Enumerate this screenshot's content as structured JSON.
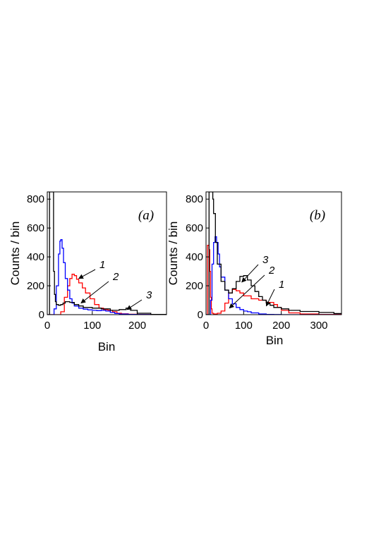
{
  "chart_data": [
    {
      "type": "line",
      "panel_label": "(a)",
      "xlabel": "Bin",
      "ylabel": "Counts / bin",
      "xlim": [
        0,
        265
      ],
      "ylim": [
        0,
        850
      ],
      "xticks": [
        0,
        100,
        200
      ],
      "yticks": [
        0,
        200,
        400,
        600,
        800
      ],
      "grid": false,
      "series": [
        {
          "id": "1",
          "color": "#ff0000",
          "x": [
            0,
            20,
            30,
            38,
            45,
            50,
            55,
            60,
            65,
            70,
            78,
            85,
            95,
            105,
            115,
            125,
            135,
            145,
            155,
            165,
            180,
            200,
            230,
            265
          ],
          "y": [
            0,
            0,
            20,
            120,
            200,
            250,
            280,
            270,
            245,
            220,
            185,
            150,
            110,
            70,
            45,
            35,
            30,
            20,
            10,
            6,
            3,
            2,
            1,
            0
          ]
        },
        {
          "id": "2",
          "color": "#0000ff",
          "x": [
            0,
            10,
            15,
            20,
            25,
            28,
            30,
            33,
            36,
            40,
            45,
            50,
            55,
            60,
            70,
            80,
            90,
            100,
            110,
            120,
            130,
            140,
            150,
            160,
            180,
            200,
            230,
            265
          ],
          "y": [
            0,
            0,
            40,
            200,
            420,
            510,
            520,
            460,
            360,
            250,
            170,
            110,
            80,
            60,
            45,
            38,
            33,
            30,
            28,
            30,
            25,
            15,
            8,
            4,
            2,
            1,
            0,
            0
          ]
        },
        {
          "id": "3",
          "color": "#000000",
          "x": [
            0,
            3,
            5,
            6,
            8,
            10,
            12,
            14,
            16,
            18,
            20,
            25,
            30,
            35,
            40,
            50,
            60,
            70,
            80,
            100,
            120,
            140,
            160,
            175,
            185,
            200,
            230,
            265
          ],
          "y": [
            0,
            0,
            850,
            850,
            850,
            850,
            850,
            300,
            140,
            90,
            70,
            65,
            70,
            80,
            90,
            85,
            70,
            60,
            50,
            45,
            40,
            30,
            35,
            45,
            30,
            10,
            2,
            0
          ]
        }
      ],
      "annotations": [
        {
          "text": "1",
          "series": "1",
          "x": 70,
          "y": 250
        },
        {
          "text": "2",
          "series": "2",
          "x": 75,
          "y": 80
        },
        {
          "text": "3",
          "series": "3",
          "x": 177,
          "y": 35
        }
      ]
    },
    {
      "type": "line",
      "panel_label": "(b)",
      "xlabel": "Bin",
      "ylabel": "Counts / bin",
      "xlim": [
        0,
        360
      ],
      "ylim": [
        0,
        850
      ],
      "xticks": [
        0,
        100,
        200,
        300
      ],
      "yticks": [
        0,
        200,
        400,
        600,
        800
      ],
      "grid": false,
      "series": [
        {
          "id": "1",
          "color": "#ff0000",
          "x": [
            0,
            2,
            4,
            6,
            8,
            10,
            12,
            14,
            16,
            20,
            30,
            40,
            50,
            60,
            70,
            80,
            90,
            100,
            120,
            140,
            160,
            180,
            190,
            200,
            220,
            250,
            300,
            360
          ],
          "y": [
            0,
            0,
            480,
            480,
            450,
            300,
            120,
            40,
            10,
            5,
            10,
            25,
            80,
            150,
            175,
            165,
            150,
            130,
            110,
            100,
            85,
            70,
            50,
            30,
            12,
            5,
            2,
            0
          ]
        },
        {
          "id": "2",
          "color": "#0000ff",
          "x": [
            0,
            8,
            12,
            16,
            20,
            24,
            28,
            32,
            36,
            40,
            50,
            60,
            70,
            80,
            90,
            100,
            110,
            120,
            140,
            160,
            180,
            200,
            250,
            300,
            360
          ],
          "y": [
            0,
            0,
            100,
            350,
            500,
            540,
            500,
            420,
            330,
            260,
            170,
            110,
            75,
            50,
            35,
            25,
            20,
            12,
            5,
            2,
            1,
            0,
            0,
            0,
            0
          ]
        },
        {
          "id": "3",
          "color": "#000000",
          "x": [
            0,
            5,
            8,
            10,
            12,
            15,
            18,
            20,
            25,
            30,
            40,
            50,
            60,
            70,
            80,
            90,
            100,
            110,
            120,
            130,
            140,
            150,
            160,
            170,
            180,
            200,
            220,
            250,
            300,
            340,
            360
          ],
          "y": [
            0,
            0,
            850,
            850,
            850,
            850,
            800,
            700,
            500,
            350,
            230,
            170,
            150,
            180,
            230,
            265,
            270,
            240,
            200,
            160,
            125,
            100,
            80,
            65,
            50,
            40,
            30,
            22,
            15,
            8,
            5
          ]
        }
      ],
      "annotations": [
        {
          "text": "3",
          "series": "3",
          "x": 95,
          "y": 225
        },
        {
          "text": "2",
          "series": "2",
          "x": 62,
          "y": 45
        },
        {
          "text": "1",
          "series": "1",
          "x": 160,
          "y": 60
        }
      ]
    }
  ]
}
